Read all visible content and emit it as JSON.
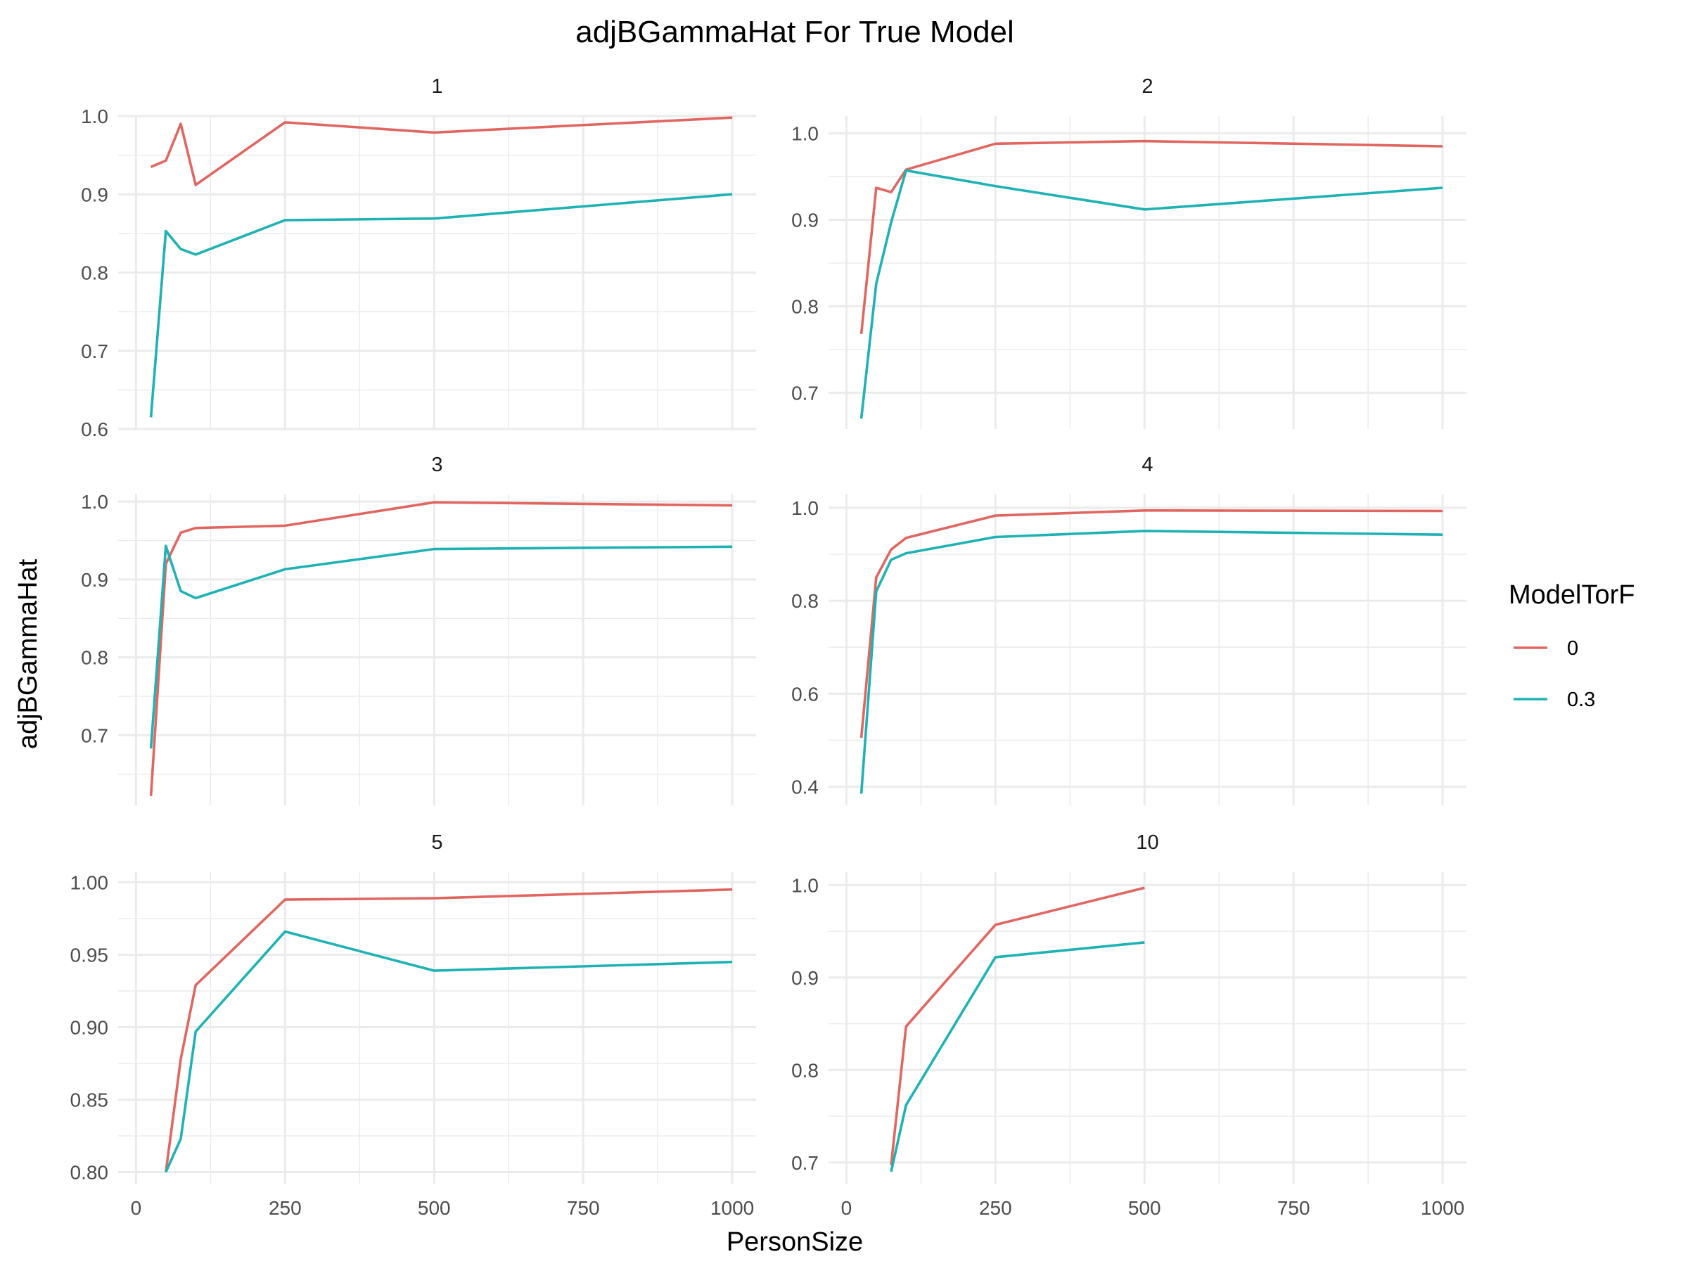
{
  "chart_data": {
    "type": "line",
    "title": "adjBGammaHat For True Model",
    "xlabel": "PersonSize",
    "ylabel": "adjBGammaHat",
    "xlim": [
      0,
      1000
    ],
    "x_ticks": [
      0,
      250,
      500,
      750,
      1000
    ],
    "x_tick_labels": [
      "0",
      "250",
      "500",
      "750",
      "1000"
    ],
    "grid": true,
    "legend": {
      "title": "ModelTorF",
      "position": "right",
      "entries": [
        {
          "label": "0",
          "color": "#e06761"
        },
        {
          "label": "0.3",
          "color": "#1fb2b4"
        }
      ]
    },
    "panels": [
      {
        "strip": "1",
        "ylim": [
          0.6,
          1.0
        ],
        "y_ticks": [
          0.6,
          0.7,
          0.8,
          0.9,
          1.0
        ],
        "y_tick_labels": [
          "0.6",
          "0.7",
          "0.8",
          "0.9",
          "1.0"
        ],
        "series": [
          {
            "legend_label": "0",
            "x": [
              25,
              50,
              75,
              100,
              250,
              500,
              1000
            ],
            "values": [
              0.935,
              0.943,
              0.99,
              0.912,
              0.992,
              0.979,
              0.998
            ]
          },
          {
            "legend_label": "0.3",
            "x": [
              25,
              50,
              75,
              100,
              250,
              500,
              1000
            ],
            "values": [
              0.615,
              0.853,
              0.83,
              0.823,
              0.867,
              0.869,
              0.9
            ]
          }
        ]
      },
      {
        "strip": "2",
        "ylim": [
          0.658,
          1.02
        ],
        "y_ticks": [
          0.7,
          0.8,
          0.9,
          1.0
        ],
        "y_tick_labels": [
          "0.7",
          "0.8",
          "0.9",
          "1.0"
        ],
        "series": [
          {
            "legend_label": "0",
            "x": [
              25,
              50,
              75,
              100,
              250,
              500,
              1000
            ],
            "values": [
              0.768,
              0.937,
              0.932,
              0.958,
              0.988,
              0.991,
              0.985
            ]
          },
          {
            "legend_label": "0.3",
            "x": [
              25,
              50,
              75,
              100,
              250,
              500,
              1000
            ],
            "values": [
              0.67,
              0.826,
              0.897,
              0.957,
              0.939,
              0.912,
              0.937
            ]
          }
        ]
      },
      {
        "strip": "3",
        "ylim": [
          0.61,
          1.01
        ],
        "y_ticks": [
          0.7,
          0.8,
          0.9,
          1.0
        ],
        "y_tick_labels": [
          "0.7",
          "0.8",
          "0.9",
          "1.0"
        ],
        "series": [
          {
            "legend_label": "0",
            "x": [
              25,
              50,
              75,
              100,
              250,
              500,
              1000
            ],
            "values": [
              0.622,
              0.92,
              0.96,
              0.966,
              0.969,
              0.999,
              0.995
            ]
          },
          {
            "legend_label": "0.3",
            "x": [
              25,
              50,
              75,
              100,
              250,
              500,
              1000
            ],
            "values": [
              0.683,
              0.943,
              0.885,
              0.876,
              0.913,
              0.939,
              0.942
            ]
          }
        ]
      },
      {
        "strip": "4",
        "ylim": [
          0.36,
          1.03
        ],
        "y_ticks": [
          0.4,
          0.6,
          0.8,
          1.0
        ],
        "y_tick_labels": [
          "0.4",
          "0.6",
          "0.8",
          "1.0"
        ],
        "series": [
          {
            "legend_label": "0",
            "x": [
              25,
              50,
              75,
              100,
              250,
              500,
              1000
            ],
            "values": [
              0.505,
              0.85,
              0.91,
              0.935,
              0.983,
              0.994,
              0.993
            ]
          },
          {
            "legend_label": "0.3",
            "x": [
              25,
              50,
              75,
              100,
              250,
              500,
              1000
            ],
            "values": [
              0.385,
              0.82,
              0.888,
              0.902,
              0.937,
              0.95,
              0.942
            ]
          }
        ]
      },
      {
        "strip": "5",
        "ylim": [
          0.792,
          1.007
        ],
        "y_ticks": [
          0.8,
          0.85,
          0.9,
          0.95,
          1.0
        ],
        "y_tick_labels": [
          "0.80",
          "0.85",
          "0.90",
          "0.95",
          "1.00"
        ],
        "series": [
          {
            "legend_label": "0",
            "x": [
              50,
              75,
              100,
              250,
              500,
              1000
            ],
            "values": [
              0.8,
              0.878,
              0.929,
              0.988,
              0.989,
              0.995
            ]
          },
          {
            "legend_label": "0.3",
            "x": [
              50,
              75,
              100,
              250,
              500,
              1000
            ],
            "values": [
              0.8,
              0.823,
              0.897,
              0.966,
              0.939,
              0.945
            ]
          }
        ]
      },
      {
        "strip": "10",
        "ylim": [
          0.677,
          1.014
        ],
        "y_ticks": [
          0.7,
          0.8,
          0.9,
          1.0
        ],
        "y_tick_labels": [
          "0.7",
          "0.8",
          "0.9",
          "1.0"
        ],
        "series": [
          {
            "legend_label": "0",
            "x": [
              75,
              100,
              250,
              500
            ],
            "values": [
              0.697,
              0.847,
              0.957,
              0.997
            ]
          },
          {
            "legend_label": "0.3",
            "x": [
              75,
              100,
              250,
              500
            ],
            "values": [
              0.69,
              0.762,
              0.922,
              0.938
            ]
          }
        ]
      }
    ]
  }
}
